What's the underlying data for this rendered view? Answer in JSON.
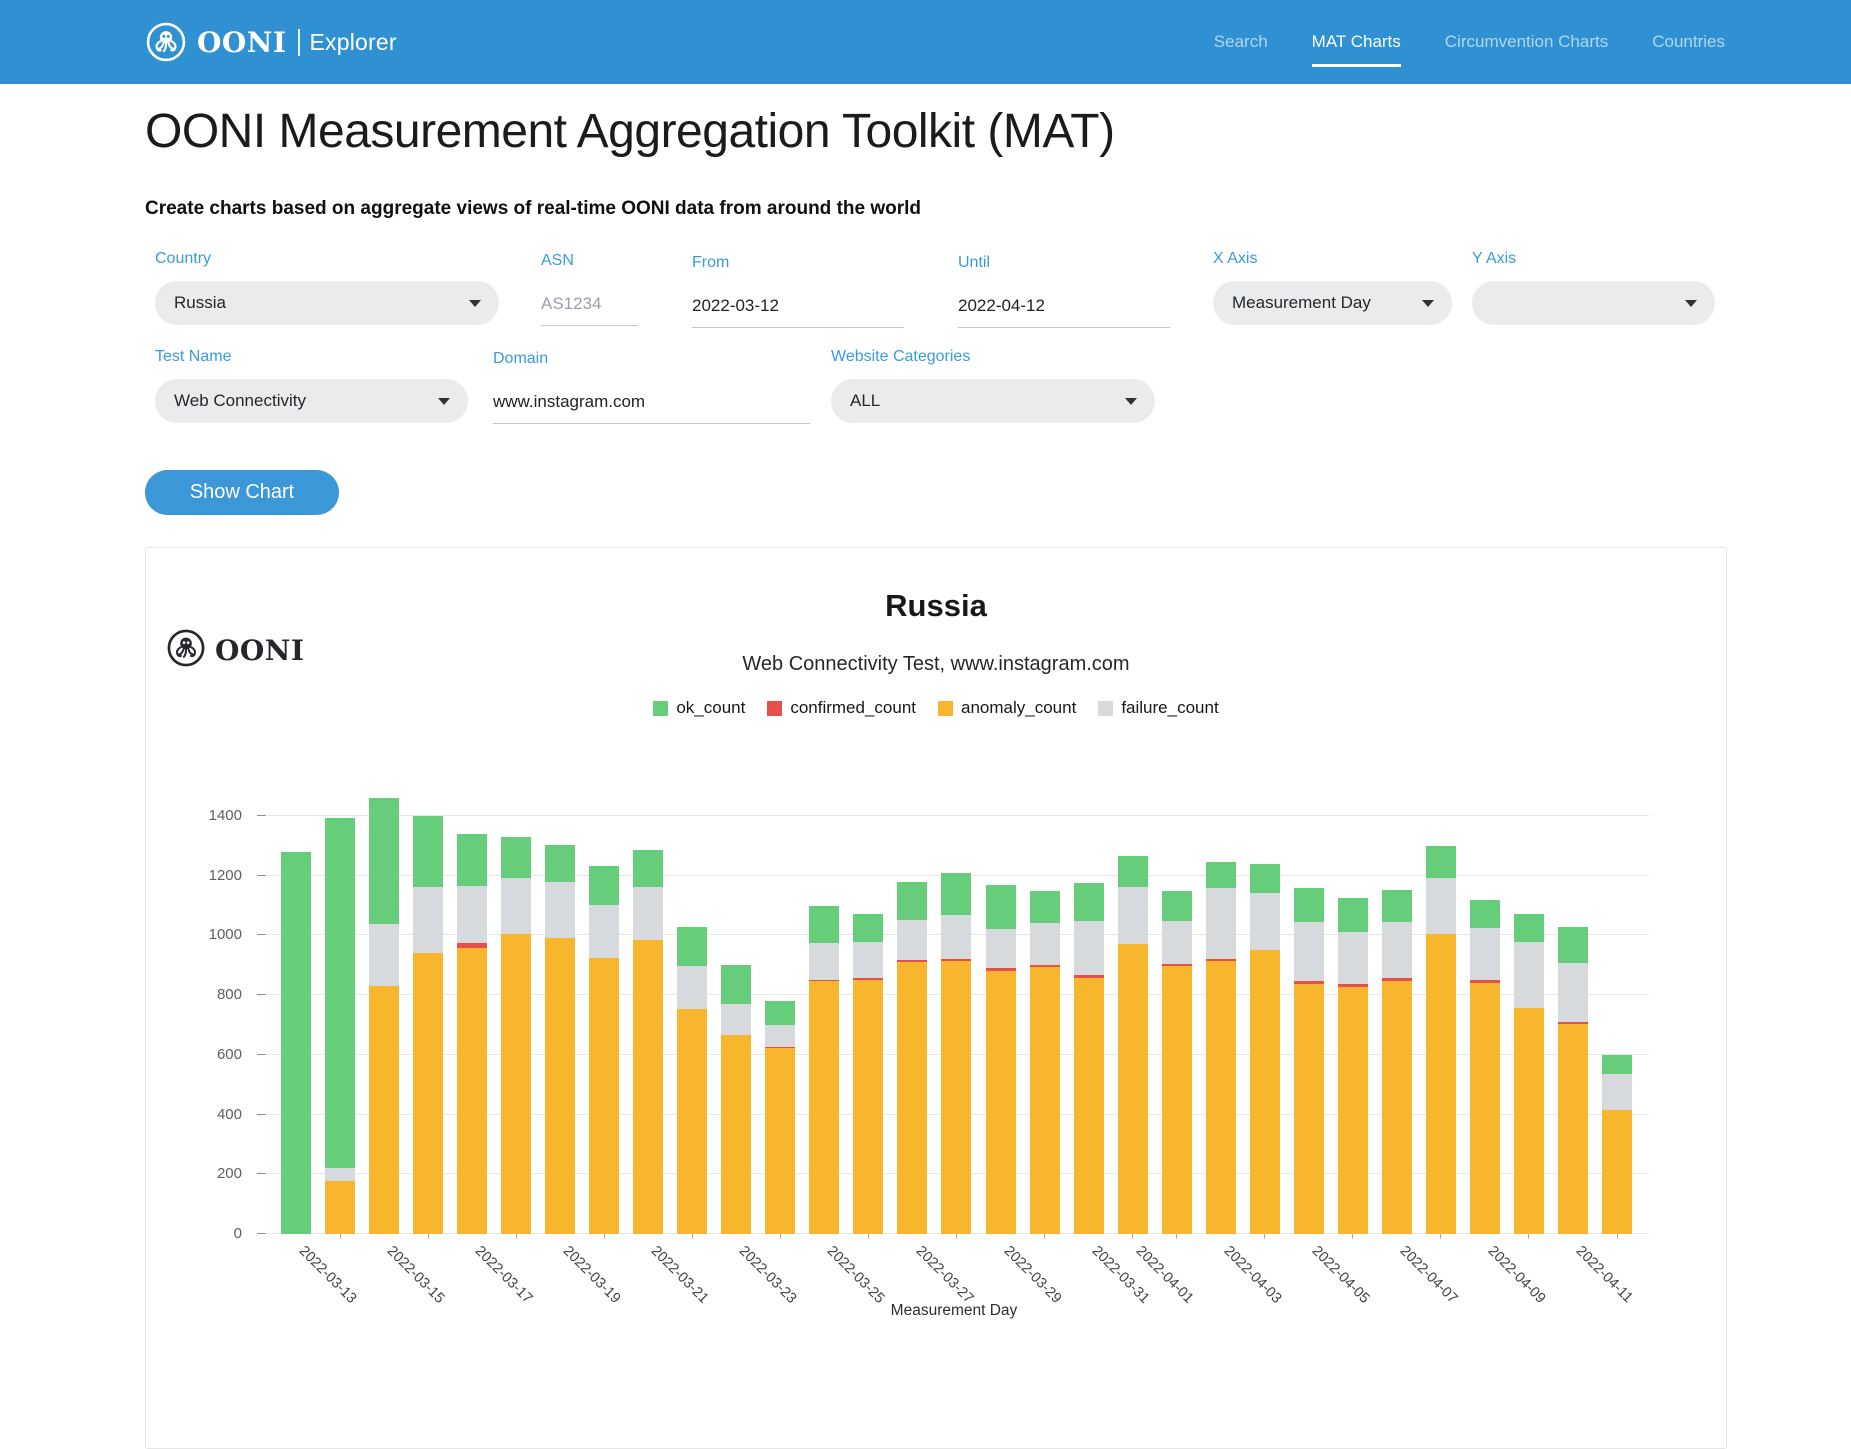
{
  "header": {
    "brand": "OONI",
    "brand_sub": "Explorer",
    "nav": [
      {
        "label": "Search",
        "active": false
      },
      {
        "label": "MAT Charts",
        "active": true
      },
      {
        "label": "Circumvention Charts",
        "active": false
      },
      {
        "label": "Countries",
        "active": false
      }
    ]
  },
  "page": {
    "title": "OONI Measurement Aggregation Toolkit (MAT)",
    "subtitle": "Create charts based on aggregate views of real-time OONI data from around the world"
  },
  "form": {
    "country": {
      "label": "Country",
      "value": "Russia"
    },
    "asn": {
      "label": "ASN",
      "placeholder": "AS1234"
    },
    "from": {
      "label": "From",
      "value": "2022-03-12"
    },
    "until": {
      "label": "Until",
      "value": "2022-04-12"
    },
    "x_axis": {
      "label": "X Axis",
      "value": "Measurement Day"
    },
    "y_axis": {
      "label": "Y Axis",
      "value": ""
    },
    "test_name": {
      "label": "Test Name",
      "value": "Web Connectivity"
    },
    "domain": {
      "label": "Domain",
      "value": "www.instagram.com"
    },
    "website_categories": {
      "label": "Website Categories",
      "value": "ALL"
    },
    "show_chart_label": "Show Chart"
  },
  "chart": {
    "brand": "OONI",
    "title": "Russia",
    "subtitle": "Web Connectivity Test, www.instagram.com",
    "xlabel": "Measurement Day"
  },
  "chart_data": {
    "type": "bar",
    "stacked": true,
    "title": "Russia",
    "subtitle": "Web Connectivity Test, www.instagram.com",
    "xlabel": "Measurement Day",
    "ylabel": "",
    "ylim": [
      0,
      1400
    ],
    "yticks": [
      0,
      200,
      400,
      600,
      800,
      1000,
      1200,
      1400
    ],
    "grid": true,
    "legend_position": "top",
    "x": [
      "2022-03-12",
      "2022-03-13",
      "2022-03-14",
      "2022-03-15",
      "2022-03-16",
      "2022-03-17",
      "2022-03-18",
      "2022-03-19",
      "2022-03-20",
      "2022-03-21",
      "2022-03-22",
      "2022-03-23",
      "2022-03-24",
      "2022-03-25",
      "2022-03-26",
      "2022-03-27",
      "2022-03-28",
      "2022-03-29",
      "2022-03-30",
      "2022-03-31",
      "2022-04-01",
      "2022-04-02",
      "2022-04-03",
      "2022-04-04",
      "2022-04-05",
      "2022-04-06",
      "2022-04-07",
      "2022-04-08",
      "2022-04-09",
      "2022-04-10",
      "2022-04-11"
    ],
    "series": [
      {
        "name": "ok_count",
        "color": "#66ce7b",
        "values": [
          1280,
          1175,
          420,
          238,
          175,
          140,
          124,
          128,
          122,
          133,
          128,
          81,
          122,
          94,
          126,
          139,
          147,
          108,
          129,
          104,
          100,
          86,
          99,
          115,
          111,
          109,
          109,
          96,
          94,
          119,
          64
        ]
      },
      {
        "name": "confirmed_count",
        "color": "#e5504a",
        "values": [
          0,
          0,
          0,
          0,
          18,
          0,
          0,
          0,
          0,
          0,
          0,
          6,
          4,
          6,
          8,
          7,
          11,
          8,
          11,
          0,
          8,
          9,
          0,
          11,
          8,
          11,
          0,
          10,
          0,
          9,
          0
        ]
      },
      {
        "name": "anomaly_count",
        "color": "#f8b62f",
        "values": [
          0,
          178,
          830,
          940,
          958,
          1006,
          992,
          926,
          986,
          753,
          667,
          622,
          847,
          850,
          911,
          913,
          880,
          894,
          858,
          972,
          898,
          913,
          950,
          836,
          828,
          847,
          1006,
          842,
          756,
          702,
          417
        ]
      },
      {
        "name": "failure_count",
        "color": "#d6dadc",
        "values": [
          0,
          42,
          210,
          222,
          188,
          185,
          186,
          177,
          177,
          144,
          105,
          72,
          125,
          122,
          133,
          149,
          131,
          140,
          178,
          191,
          144,
          237,
          192,
          197,
          177,
          186,
          185,
          172,
          222,
          198,
          119
        ]
      }
    ],
    "stack_order_bottom_to_top": [
      "anomaly_count",
      "confirmed_count",
      "failure_count",
      "ok_count"
    ],
    "xtick_labels": [
      {
        "index": 1,
        "label": "2022-03-13"
      },
      {
        "index": 3,
        "label": "2022-03-15"
      },
      {
        "index": 5,
        "label": "2022-03-17"
      },
      {
        "index": 7,
        "label": "2022-03-19"
      },
      {
        "index": 9,
        "label": "2022-03-21"
      },
      {
        "index": 11,
        "label": "2022-03-23"
      },
      {
        "index": 13,
        "label": "2022-03-25"
      },
      {
        "index": 15,
        "label": "2022-03-27"
      },
      {
        "index": 17,
        "label": "2022-03-29"
      },
      {
        "index": 19,
        "label": "2022-03-31"
      },
      {
        "index": 20,
        "label": "2022-04-01"
      },
      {
        "index": 22,
        "label": "2022-04-03"
      },
      {
        "index": 24,
        "label": "2022-04-05"
      },
      {
        "index": 26,
        "label": "2022-04-07"
      },
      {
        "index": 28,
        "label": "2022-04-09"
      },
      {
        "index": 30,
        "label": "2022-04-11"
      }
    ]
  }
}
